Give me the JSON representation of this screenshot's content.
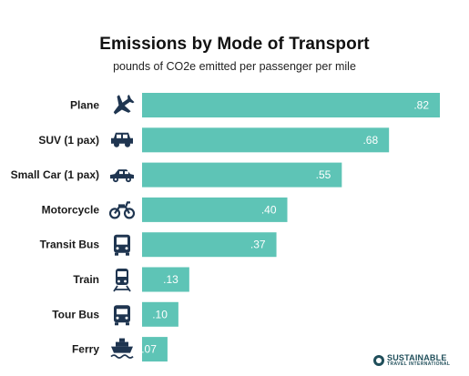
{
  "chart_data": {
    "type": "bar",
    "orientation": "horizontal",
    "title": "Emissions by Mode of Transport",
    "subtitle": "pounds of CO2e emitted per passenger per mile",
    "categories": [
      "Plane",
      "SUV (1 pax)",
      "Small Car (1 pax)",
      "Motorcycle",
      "Transit Bus",
      "Train",
      "Tour Bus",
      "Ferry"
    ],
    "values": [
      0.82,
      0.68,
      0.55,
      0.4,
      0.37,
      0.13,
      0.1,
      0.07
    ],
    "value_labels": [
      ".82",
      ".68",
      ".55",
      ".40",
      ".37",
      ".13",
      ".10",
      ".07"
    ],
    "icons": [
      "plane-icon",
      "suv-icon",
      "small-car-icon",
      "motorcycle-icon",
      "transit-bus-icon",
      "train-icon",
      "tour-bus-icon",
      "ferry-icon"
    ],
    "xlim": [
      0,
      0.82
    ],
    "grid": false,
    "legend": "none",
    "bar_color": "#5ec4b6"
  },
  "branding": {
    "logo_line1": "SUSTAINABLE",
    "logo_line2": "TRAVEL INTERNATIONAL",
    "color": "#1f4e5a"
  }
}
